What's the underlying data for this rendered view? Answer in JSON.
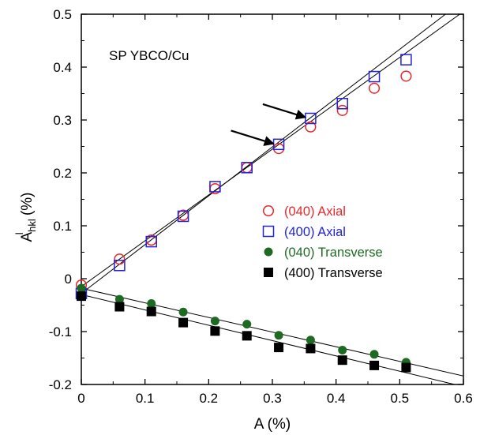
{
  "chart_data": {
    "type": "scatter",
    "title": "",
    "xlabel": "A (%)",
    "ylabel": {
      "main": "A",
      "sup": "l",
      "sub": "hkl",
      "unit": " (%)"
    },
    "xlim": [
      0,
      0.6
    ],
    "ylim": [
      -0.2,
      0.5
    ],
    "xticks": [
      "0",
      "0.1",
      "0.2",
      "0.3",
      "0.4",
      "0.5",
      "0.6"
    ],
    "yticks": [
      "-0.2",
      "-0.1",
      "0",
      "0.1",
      "0.2",
      "0.3",
      "0.4",
      "0.5"
    ],
    "annotation": "SP YBCO/Cu",
    "legend_position": "right",
    "series": [
      {
        "name": "(040) Axial",
        "marker": "circle-open",
        "color": "#e8262a",
        "x": [
          0,
          0.06,
          0.11,
          0.16,
          0.21,
          0.26,
          0.31,
          0.36,
          0.41,
          0.46,
          0.51
        ],
        "y": [
          -0.012,
          0.037,
          0.073,
          0.12,
          0.17,
          0.21,
          0.246,
          0.287,
          0.318,
          0.36,
          0.383
        ]
      },
      {
        "name": "(400) Axial",
        "marker": "square-open",
        "color": "#2323d6",
        "x": [
          0,
          0.06,
          0.11,
          0.16,
          0.21,
          0.26,
          0.31,
          0.36,
          0.41,
          0.46,
          0.51
        ],
        "y": [
          -0.028,
          0.025,
          0.07,
          0.118,
          0.174,
          0.21,
          0.254,
          0.303,
          0.331,
          0.382,
          0.414
        ]
      },
      {
        "name": "(040) Transverse",
        "marker": "circle-filled",
        "color": "#1d6a22",
        "x": [
          0,
          0.06,
          0.11,
          0.16,
          0.21,
          0.26,
          0.31,
          0.36,
          0.41,
          0.46,
          0.51
        ],
        "y": [
          -0.018,
          -0.039,
          -0.047,
          -0.063,
          -0.08,
          -0.086,
          -0.107,
          -0.116,
          -0.135,
          -0.143,
          -0.158
        ]
      },
      {
        "name": "(400) Transverse",
        "marker": "square-filled",
        "color": "#000000",
        "x": [
          0,
          0.06,
          0.11,
          0.16,
          0.21,
          0.26,
          0.31,
          0.36,
          0.41,
          0.46,
          0.51
        ],
        "y": [
          -0.033,
          -0.053,
          -0.062,
          -0.083,
          -0.099,
          -0.108,
          -0.13,
          -0.132,
          -0.154,
          -0.164,
          -0.168
        ]
      }
    ],
    "fit_lines": [
      {
        "x": [
          0,
          0.6
        ],
        "y": [
          -0.015,
          0.505
        ]
      },
      {
        "x": [
          0,
          0.6
        ],
        "y": [
          -0.028,
          0.526
        ]
      },
      {
        "x": [
          0,
          0.6
        ],
        "y": [
          -0.018,
          -0.184
        ]
      },
      {
        "x": [
          0,
          0.6
        ],
        "y": [
          -0.03,
          -0.204
        ]
      }
    ],
    "arrows": [
      {
        "from": [
          0.235,
          0.28
        ],
        "to": [
          0.302,
          0.255
        ]
      },
      {
        "from": [
          0.285,
          0.33
        ],
        "to": [
          0.352,
          0.305
        ]
      }
    ]
  }
}
